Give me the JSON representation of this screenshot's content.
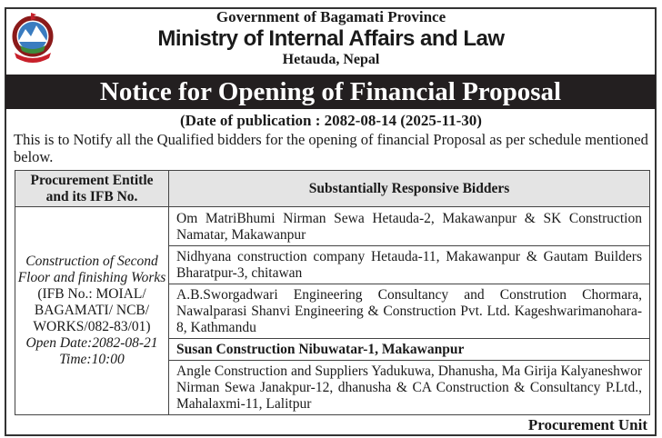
{
  "header": {
    "government": "Government of Bagamati Province",
    "ministry": "Ministry of Internal Affairs and Law",
    "location": "Hetauda, Nepal",
    "logo": "nepal-emblem-icon"
  },
  "notice_title": "Notice for Opening of Financial Proposal",
  "publication_date": "(Date of publication : 2082-08-14 (2025-11-30)",
  "intro": "This is to Notify all the Qualified bidders for the opening of financial Proposal as per schedule mentioned below.",
  "table": {
    "headers": [
      "Procurement Entitle and its IFB No.",
      "Substantially Responsive Bidders"
    ],
    "procurement": {
      "title": "Construction of Second Floor and finishing Works",
      "ifb": "(IFB No.: MOIAL/ BAGAMATI/ NCB/ WORKS/082-83/01)",
      "open_date": "Open Date:2082-08-21",
      "time": "Time:10:00"
    },
    "bidders": [
      "Om MatriBhumi Nirman Sewa Hetauda-2, Makawanpur & SK Construction Namatar, Makawanpur",
      "Nidhyana construction company Hetauda-11, Makawanpur & Gautam Builders Bharatpur-3, chitawan",
      "A.B.Sworgadwari Engineering Consultancy and Constrution Chormara, Nawalparasi Shanvi Engineering & Construction Pvt. Ltd. Kageshwarimanohara-8, Kathmandu",
      "Susan Construction Nibuwatar-1, Makawanpur",
      "Angle Construction and Suppliers Yadukuwa, Dhanusha, Ma Girija Kalyaneshwor Nirman Sewa Janakpur-12, dhanusha & CA Construction & Consultancy P.Ltd., Mahalaxmi-11, Lalitpur"
    ]
  },
  "footer": "Procurement Unit"
}
